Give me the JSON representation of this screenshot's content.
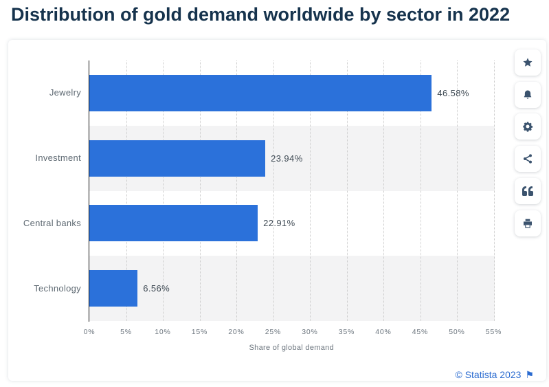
{
  "page": {
    "title": "Distribution of gold demand worldwide by sector in 2022"
  },
  "chart_data": {
    "type": "bar",
    "orientation": "horizontal",
    "title": "Distribution of gold demand worldwide by sector in 2022",
    "categories": [
      "Jewelry",
      "Investment",
      "Central banks",
      "Technology"
    ],
    "values": [
      46.58,
      23.94,
      22.91,
      6.56
    ],
    "value_labels": [
      "46.58%",
      "23.94%",
      "22.91%",
      "6.56%"
    ],
    "xlabel": "Share of global demand",
    "xlim": [
      0,
      55
    ],
    "xtick_step": 5,
    "xticks": [
      "0%",
      "5%",
      "10%",
      "15%",
      "20%",
      "25%",
      "30%",
      "35%",
      "40%",
      "45%",
      "50%",
      "55%"
    ],
    "grid": "vertical-dotted",
    "legend": "none",
    "bar_color": "#2b71da",
    "band_color": "#f3f3f4",
    "band_rows": [
      1,
      3
    ]
  },
  "toolbar": {
    "buttons": [
      {
        "name": "favorite",
        "icon": "star-icon"
      },
      {
        "name": "alerts",
        "icon": "bell-icon"
      },
      {
        "name": "settings",
        "icon": "gear-icon"
      },
      {
        "name": "share",
        "icon": "share-icon"
      },
      {
        "name": "cite",
        "icon": "quote-icon"
      },
      {
        "name": "print",
        "icon": "print-icon"
      }
    ]
  },
  "footer": {
    "copyright": "© Statista 2023",
    "flag": "⚑"
  }
}
